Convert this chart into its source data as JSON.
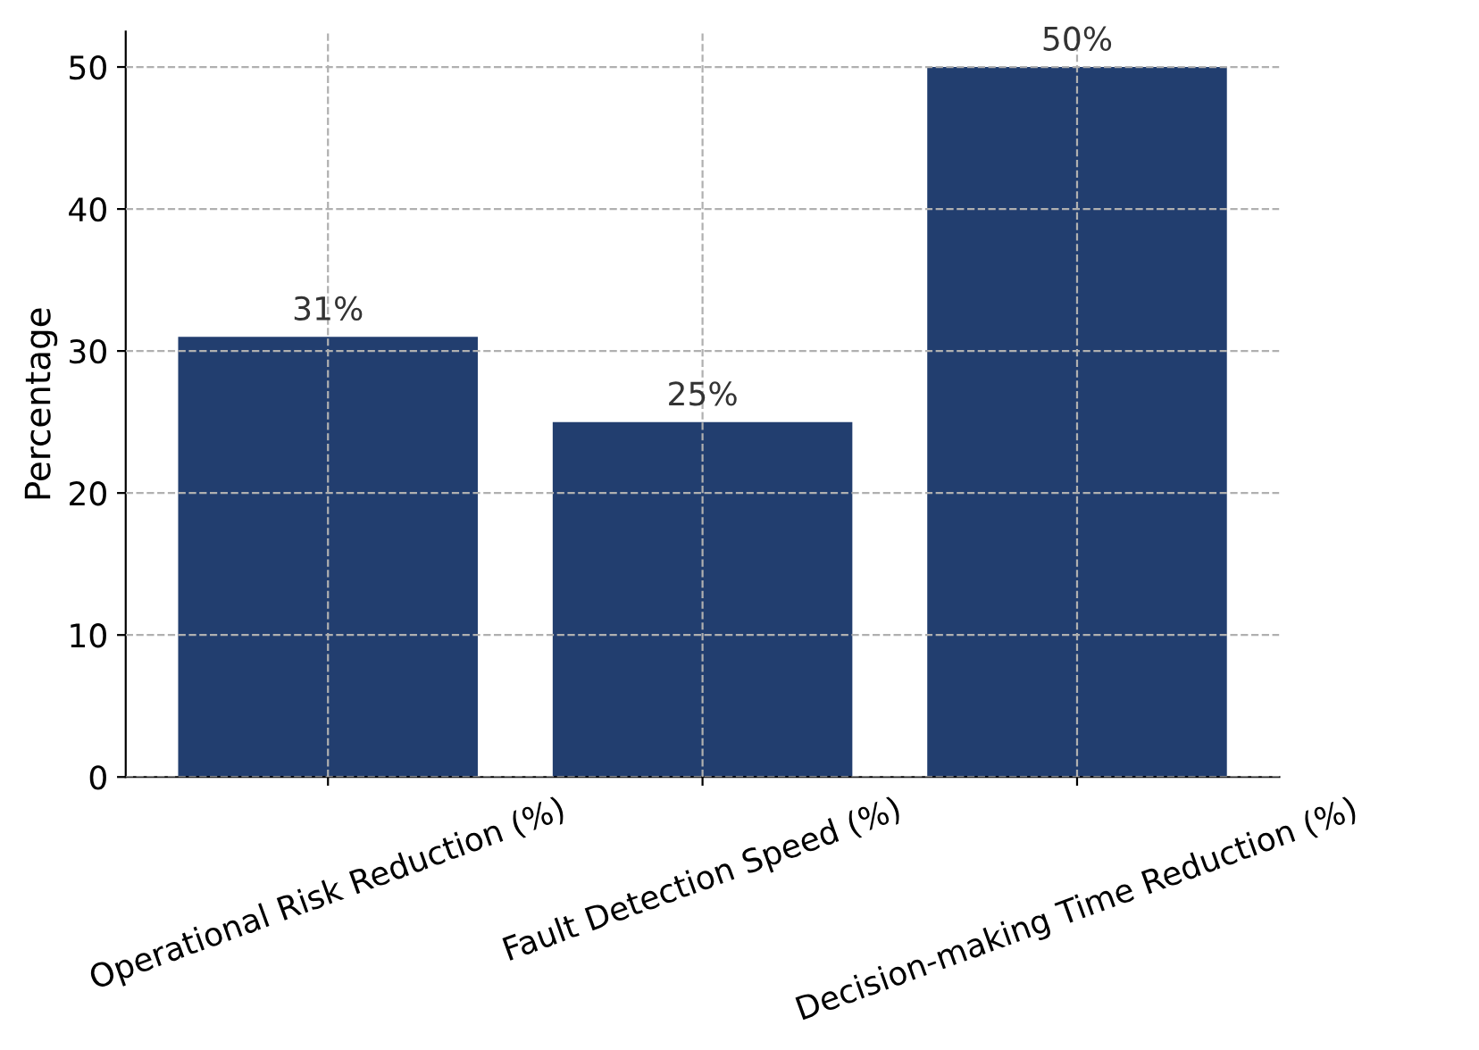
{
  "chart_data": {
    "type": "bar",
    "ylabel": "Percentage",
    "categories": [
      "Operational Risk Reduction (%)",
      "Fault Detection Speed (%)",
      "Decision-making Time Reduction (%)"
    ],
    "values": [
      31,
      25,
      50
    ],
    "color": "#223e6f",
    "value_labels": [
      "31%",
      "25%",
      "50%"
    ],
    "ylim": [
      0,
      52.5
    ],
    "yticks": [
      0,
      10,
      20,
      30,
      40,
      50
    ],
    "grid": true
  }
}
